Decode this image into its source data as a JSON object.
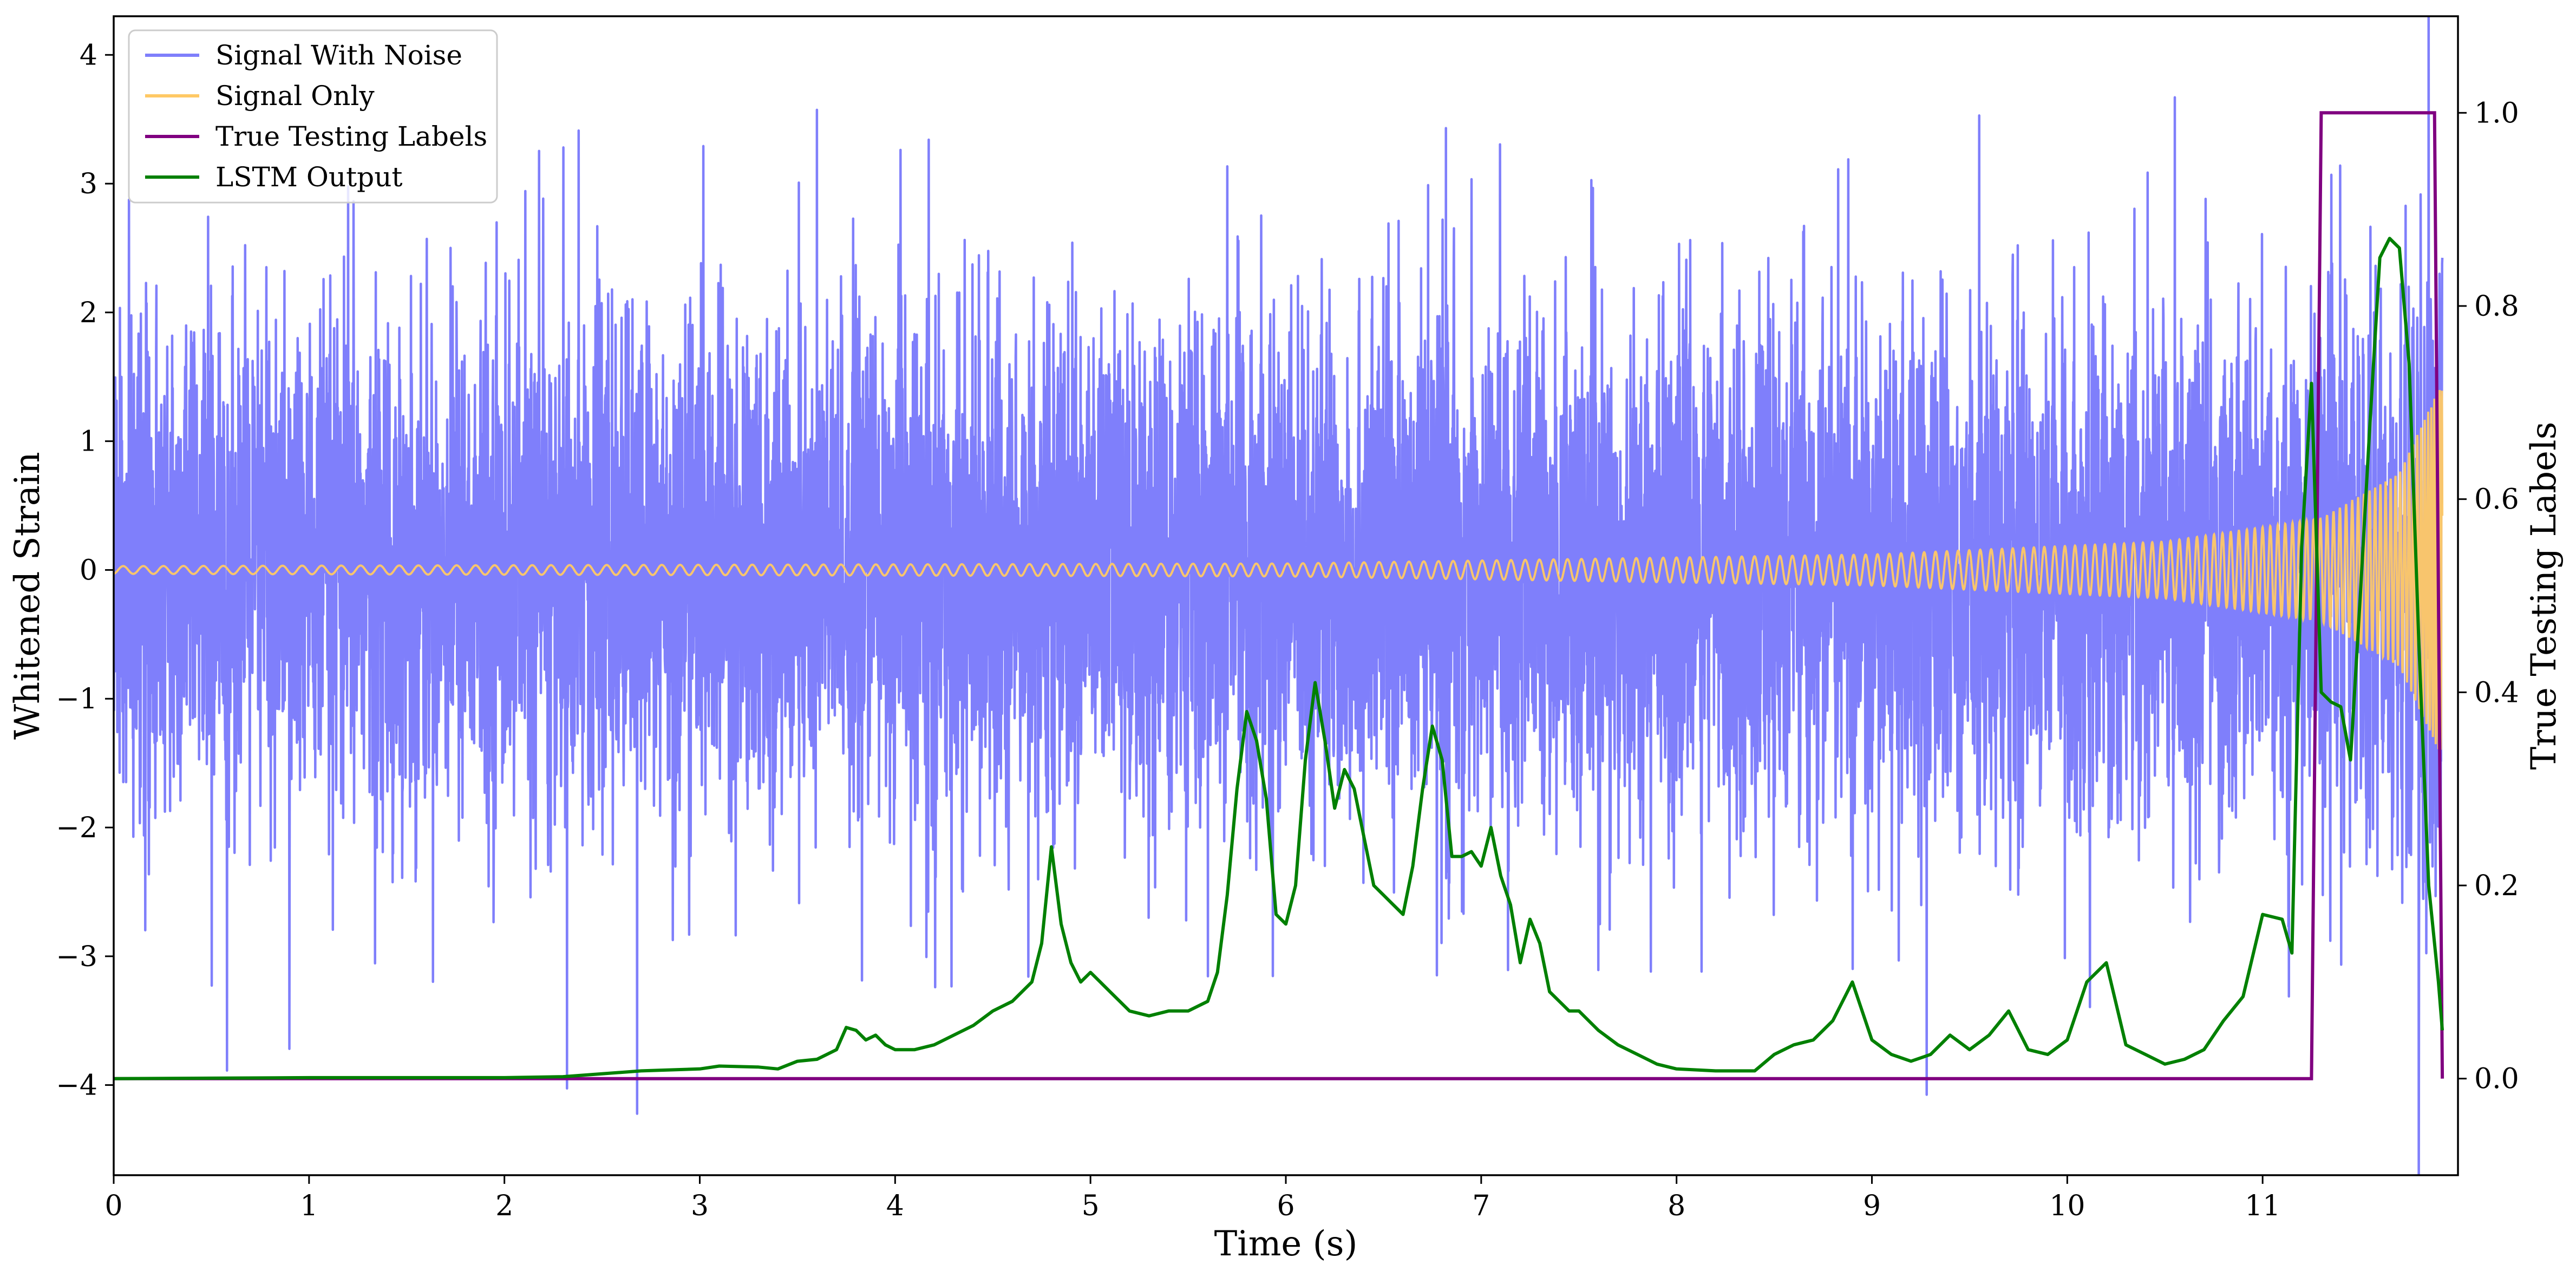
{
  "chart_data": {
    "type": "line",
    "xlabel": "Time (s)",
    "ylabel": "Whitened Strain",
    "y2label": "True Testing Labels",
    "xlim": [
      0,
      12
    ],
    "ylim": [
      -4.7,
      4.3
    ],
    "y2lim": [
      -0.1,
      1.1
    ],
    "xticks": [
      "0",
      "1",
      "2",
      "3",
      "4",
      "5",
      "6",
      "7",
      "8",
      "9",
      "10",
      "11"
    ],
    "xtick_values": [
      0,
      1,
      2,
      3,
      4,
      5,
      6,
      7,
      8,
      9,
      10,
      11
    ],
    "yticks": [
      "−4",
      "−3",
      "−2",
      "−1",
      "0",
      "1",
      "2",
      "3",
      "4"
    ],
    "ytick_values": [
      -4,
      -3,
      -2,
      -1,
      0,
      1,
      2,
      3,
      4
    ],
    "y2ticks": [
      "0.0",
      "0.2",
      "0.4",
      "0.6",
      "0.8",
      "1.0"
    ],
    "y2tick_values": [
      0.0,
      0.2,
      0.4,
      0.6,
      0.8,
      1.0
    ],
    "grid": false,
    "legend_position": "top-left",
    "series": [
      {
        "name": "Signal With Noise",
        "axis": "left",
        "color": "#7f7ffb",
        "description": "dense noisy strain, approximately ±1.5 typical with spikes to about ±4",
        "x_range": [
          0,
          11.92
        ],
        "spike_points": [
          {
            "x": 0.58,
            "y": -3.9
          },
          {
            "x": 0.9,
            "y": -3.7
          },
          {
            "x": 1.2,
            "y": 3.0
          },
          {
            "x": 2.32,
            "y": -4.05
          },
          {
            "x": 2.38,
            "y": 3.45
          },
          {
            "x": 2.68,
            "y": -4.2
          },
          {
            "x": 3.6,
            "y": 3.6
          },
          {
            "x": 6.82,
            "y": 3.5
          },
          {
            "x": 9.28,
            "y": -4.1
          },
          {
            "x": 9.55,
            "y": 3.4
          },
          {
            "x": 10.55,
            "y": 3.9
          },
          {
            "x": 11.75,
            "y": -3.1
          },
          {
            "x": 11.8,
            "y": -3.9
          },
          {
            "x": 11.85,
            "y": 3.7
          }
        ]
      },
      {
        "name": "Signal Only",
        "axis": "left",
        "color": "#ffc965",
        "description": "chirp with amplitude growing from about 0.03 to about 1.4 near 11.9 s",
        "amplitude_points": [
          [
            0,
            0.03
          ],
          [
            6,
            0.05
          ],
          [
            9,
            0.12
          ],
          [
            10.5,
            0.22
          ],
          [
            11.3,
            0.4
          ],
          [
            11.7,
            0.75
          ],
          [
            11.9,
            1.4
          ]
        ]
      },
      {
        "name": "True Testing Labels",
        "axis": "right",
        "color": "#800080",
        "x": [
          0,
          11.25,
          11.3,
          11.88,
          11.92
        ],
        "y": [
          0,
          0,
          1,
          1,
          0
        ]
      },
      {
        "name": "LSTM Output",
        "axis": "right",
        "color": "#008000",
        "x": [
          0,
          1.0,
          2.0,
          2.3,
          2.5,
          2.7,
          3.0,
          3.1,
          3.3,
          3.4,
          3.5,
          3.6,
          3.7,
          3.75,
          3.8,
          3.85,
          3.9,
          3.95,
          4.0,
          4.1,
          4.2,
          4.3,
          4.4,
          4.5,
          4.6,
          4.7,
          4.75,
          4.8,
          4.85,
          4.9,
          4.95,
          5.0,
          5.05,
          5.1,
          5.2,
          5.3,
          5.4,
          5.5,
          5.6,
          5.65,
          5.7,
          5.75,
          5.8,
          5.85,
          5.9,
          5.95,
          6.0,
          6.05,
          6.1,
          6.15,
          6.2,
          6.25,
          6.3,
          6.35,
          6.4,
          6.45,
          6.5,
          6.55,
          6.6,
          6.65,
          6.7,
          6.75,
          6.8,
          6.85,
          6.9,
          6.95,
          7.0,
          7.05,
          7.1,
          7.15,
          7.2,
          7.25,
          7.3,
          7.35,
          7.4,
          7.45,
          7.5,
          7.6,
          7.7,
          7.8,
          7.9,
          8.0,
          8.2,
          8.3,
          8.4,
          8.5,
          8.6,
          8.7,
          8.8,
          8.9,
          9.0,
          9.1,
          9.2,
          9.3,
          9.4,
          9.5,
          9.6,
          9.7,
          9.8,
          9.9,
          10.0,
          10.1,
          10.2,
          10.3,
          10.4,
          10.5,
          10.6,
          10.7,
          10.8,
          10.9,
          11.0,
          11.1,
          11.15,
          11.2,
          11.25,
          11.3,
          11.35,
          11.4,
          11.45,
          11.5,
          11.55,
          11.6,
          11.65,
          11.7,
          11.75,
          11.8,
          11.85,
          11.9,
          11.92
        ],
        "y": [
          0.0,
          0.001,
          0.001,
          0.002,
          0.005,
          0.008,
          0.01,
          0.013,
          0.012,
          0.01,
          0.018,
          0.02,
          0.03,
          0.053,
          0.05,
          0.04,
          0.045,
          0.035,
          0.03,
          0.03,
          0.035,
          0.045,
          0.055,
          0.07,
          0.08,
          0.1,
          0.14,
          0.24,
          0.16,
          0.12,
          0.1,
          0.11,
          0.1,
          0.09,
          0.07,
          0.065,
          0.07,
          0.07,
          0.08,
          0.11,
          0.19,
          0.3,
          0.38,
          0.35,
          0.29,
          0.17,
          0.16,
          0.2,
          0.33,
          0.41,
          0.35,
          0.28,
          0.32,
          0.3,
          0.25,
          0.2,
          0.19,
          0.18,
          0.17,
          0.22,
          0.3,
          0.365,
          0.33,
          0.23,
          0.23,
          0.235,
          0.22,
          0.26,
          0.21,
          0.18,
          0.12,
          0.165,
          0.14,
          0.09,
          0.08,
          0.07,
          0.07,
          0.05,
          0.035,
          0.025,
          0.015,
          0.01,
          0.008,
          0.008,
          0.008,
          0.025,
          0.035,
          0.04,
          0.06,
          0.1,
          0.04,
          0.025,
          0.018,
          0.025,
          0.045,
          0.03,
          0.045,
          0.07,
          0.03,
          0.025,
          0.04,
          0.1,
          0.12,
          0.035,
          0.025,
          0.015,
          0.02,
          0.03,
          0.06,
          0.085,
          0.17,
          0.165,
          0.13,
          0.55,
          0.72,
          0.4,
          0.39,
          0.385,
          0.33,
          0.5,
          0.68,
          0.85,
          0.87,
          0.86,
          0.74,
          0.45,
          0.2,
          0.1,
          0.05
        ]
      }
    ]
  }
}
